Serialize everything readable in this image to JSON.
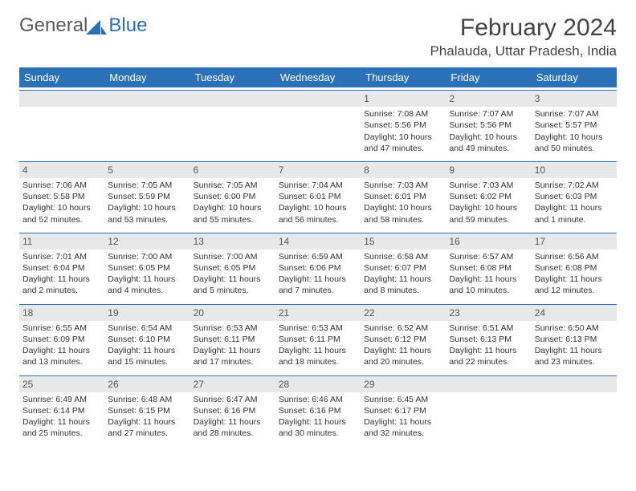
{
  "brand": {
    "part1": "General",
    "part2": "Blue"
  },
  "title": "February 2024",
  "location": "Phalauda, Uttar Pradesh, India",
  "header_bg": "#2a71b8",
  "dayNames": [
    "Sunday",
    "Monday",
    "Tuesday",
    "Wednesday",
    "Thursday",
    "Friday",
    "Saturday"
  ],
  "weeks": [
    [
      {
        "n": "",
        "sunrise": "",
        "sunset": "",
        "daylight": ""
      },
      {
        "n": "",
        "sunrise": "",
        "sunset": "",
        "daylight": ""
      },
      {
        "n": "",
        "sunrise": "",
        "sunset": "",
        "daylight": ""
      },
      {
        "n": "",
        "sunrise": "",
        "sunset": "",
        "daylight": ""
      },
      {
        "n": "1",
        "sunrise": "Sunrise: 7:08 AM",
        "sunset": "Sunset: 5:56 PM",
        "daylight": "Daylight: 10 hours and 47 minutes."
      },
      {
        "n": "2",
        "sunrise": "Sunrise: 7:07 AM",
        "sunset": "Sunset: 5:56 PM",
        "daylight": "Daylight: 10 hours and 49 minutes."
      },
      {
        "n": "3",
        "sunrise": "Sunrise: 7:07 AM",
        "sunset": "Sunset: 5:57 PM",
        "daylight": "Daylight: 10 hours and 50 minutes."
      }
    ],
    [
      {
        "n": "4",
        "sunrise": "Sunrise: 7:06 AM",
        "sunset": "Sunset: 5:58 PM",
        "daylight": "Daylight: 10 hours and 52 minutes."
      },
      {
        "n": "5",
        "sunrise": "Sunrise: 7:05 AM",
        "sunset": "Sunset: 5:59 PM",
        "daylight": "Daylight: 10 hours and 53 minutes."
      },
      {
        "n": "6",
        "sunrise": "Sunrise: 7:05 AM",
        "sunset": "Sunset: 6:00 PM",
        "daylight": "Daylight: 10 hours and 55 minutes."
      },
      {
        "n": "7",
        "sunrise": "Sunrise: 7:04 AM",
        "sunset": "Sunset: 6:01 PM",
        "daylight": "Daylight: 10 hours and 56 minutes."
      },
      {
        "n": "8",
        "sunrise": "Sunrise: 7:03 AM",
        "sunset": "Sunset: 6:01 PM",
        "daylight": "Daylight: 10 hours and 58 minutes."
      },
      {
        "n": "9",
        "sunrise": "Sunrise: 7:03 AM",
        "sunset": "Sunset: 6:02 PM",
        "daylight": "Daylight: 10 hours and 59 minutes."
      },
      {
        "n": "10",
        "sunrise": "Sunrise: 7:02 AM",
        "sunset": "Sunset: 6:03 PM",
        "daylight": "Daylight: 11 hours and 1 minute."
      }
    ],
    [
      {
        "n": "11",
        "sunrise": "Sunrise: 7:01 AM",
        "sunset": "Sunset: 6:04 PM",
        "daylight": "Daylight: 11 hours and 2 minutes."
      },
      {
        "n": "12",
        "sunrise": "Sunrise: 7:00 AM",
        "sunset": "Sunset: 6:05 PM",
        "daylight": "Daylight: 11 hours and 4 minutes."
      },
      {
        "n": "13",
        "sunrise": "Sunrise: 7:00 AM",
        "sunset": "Sunset: 6:05 PM",
        "daylight": "Daylight: 11 hours and 5 minutes."
      },
      {
        "n": "14",
        "sunrise": "Sunrise: 6:59 AM",
        "sunset": "Sunset: 6:06 PM",
        "daylight": "Daylight: 11 hours and 7 minutes."
      },
      {
        "n": "15",
        "sunrise": "Sunrise: 6:58 AM",
        "sunset": "Sunset: 6:07 PM",
        "daylight": "Daylight: 11 hours and 8 minutes."
      },
      {
        "n": "16",
        "sunrise": "Sunrise: 6:57 AM",
        "sunset": "Sunset: 6:08 PM",
        "daylight": "Daylight: 11 hours and 10 minutes."
      },
      {
        "n": "17",
        "sunrise": "Sunrise: 6:56 AM",
        "sunset": "Sunset: 6:08 PM",
        "daylight": "Daylight: 11 hours and 12 minutes."
      }
    ],
    [
      {
        "n": "18",
        "sunrise": "Sunrise: 6:55 AM",
        "sunset": "Sunset: 6:09 PM",
        "daylight": "Daylight: 11 hours and 13 minutes."
      },
      {
        "n": "19",
        "sunrise": "Sunrise: 6:54 AM",
        "sunset": "Sunset: 6:10 PM",
        "daylight": "Daylight: 11 hours and 15 minutes."
      },
      {
        "n": "20",
        "sunrise": "Sunrise: 6:53 AM",
        "sunset": "Sunset: 6:11 PM",
        "daylight": "Daylight: 11 hours and 17 minutes."
      },
      {
        "n": "21",
        "sunrise": "Sunrise: 6:53 AM",
        "sunset": "Sunset: 6:11 PM",
        "daylight": "Daylight: 11 hours and 18 minutes."
      },
      {
        "n": "22",
        "sunrise": "Sunrise: 6:52 AM",
        "sunset": "Sunset: 6:12 PM",
        "daylight": "Daylight: 11 hours and 20 minutes."
      },
      {
        "n": "23",
        "sunrise": "Sunrise: 6:51 AM",
        "sunset": "Sunset: 6:13 PM",
        "daylight": "Daylight: 11 hours and 22 minutes."
      },
      {
        "n": "24",
        "sunrise": "Sunrise: 6:50 AM",
        "sunset": "Sunset: 6:13 PM",
        "daylight": "Daylight: 11 hours and 23 minutes."
      }
    ],
    [
      {
        "n": "25",
        "sunrise": "Sunrise: 6:49 AM",
        "sunset": "Sunset: 6:14 PM",
        "daylight": "Daylight: 11 hours and 25 minutes."
      },
      {
        "n": "26",
        "sunrise": "Sunrise: 6:48 AM",
        "sunset": "Sunset: 6:15 PM",
        "daylight": "Daylight: 11 hours and 27 minutes."
      },
      {
        "n": "27",
        "sunrise": "Sunrise: 6:47 AM",
        "sunset": "Sunset: 6:16 PM",
        "daylight": "Daylight: 11 hours and 28 minutes."
      },
      {
        "n": "28",
        "sunrise": "Sunrise: 6:46 AM",
        "sunset": "Sunset: 6:16 PM",
        "daylight": "Daylight: 11 hours and 30 minutes."
      },
      {
        "n": "29",
        "sunrise": "Sunrise: 6:45 AM",
        "sunset": "Sunset: 6:17 PM",
        "daylight": "Daylight: 11 hours and 32 minutes."
      },
      {
        "n": "",
        "sunrise": "",
        "sunset": "",
        "daylight": ""
      },
      {
        "n": "",
        "sunrise": "",
        "sunset": "",
        "daylight": ""
      }
    ]
  ]
}
